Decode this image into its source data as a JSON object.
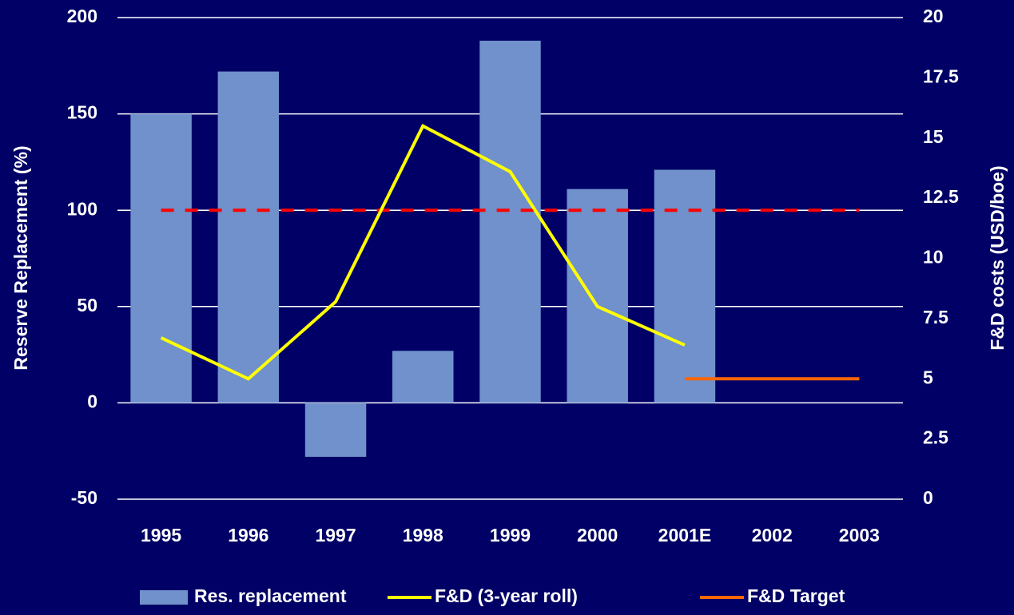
{
  "chart_data": {
    "type": "bar_line",
    "categories": [
      "1995",
      "1996",
      "1997",
      "1998",
      "1999",
      "2000",
      "2001E",
      "2002",
      "2003"
    ],
    "series": [
      {
        "name": "Res. replacement",
        "type": "bar",
        "color": "#7091cb",
        "values": [
          150,
          172,
          -28,
          27,
          188,
          111,
          121,
          null,
          null
        ]
      },
      {
        "name": "F&D (3-year roll)",
        "type": "line",
        "axis": "y2",
        "color": "#ffff00",
        "values": [
          6.7,
          5.0,
          8.2,
          15.5,
          13.6,
          8.0,
          6.4,
          null,
          null
        ]
      },
      {
        "name": "F&D Target",
        "type": "line",
        "axis": "y2",
        "color": "#ff6600",
        "values": [
          null,
          null,
          null,
          null,
          null,
          null,
          5,
          5,
          5
        ]
      }
    ],
    "reference_line": {
      "value": 100,
      "color": "#ff0000"
    },
    "ylabel": "Reserve Replacement (%)",
    "y2label": "F&D costs (USD/boe)",
    "ylim": [
      -50,
      200
    ],
    "yticks": [
      -50,
      0,
      50,
      100,
      150,
      200
    ],
    "y2lim": [
      0,
      20
    ],
    "y2ticks": [
      0,
      2.5,
      5,
      7.5,
      10,
      12.5,
      15,
      17.5,
      20
    ],
    "grid": true,
    "legend": "bottom"
  }
}
